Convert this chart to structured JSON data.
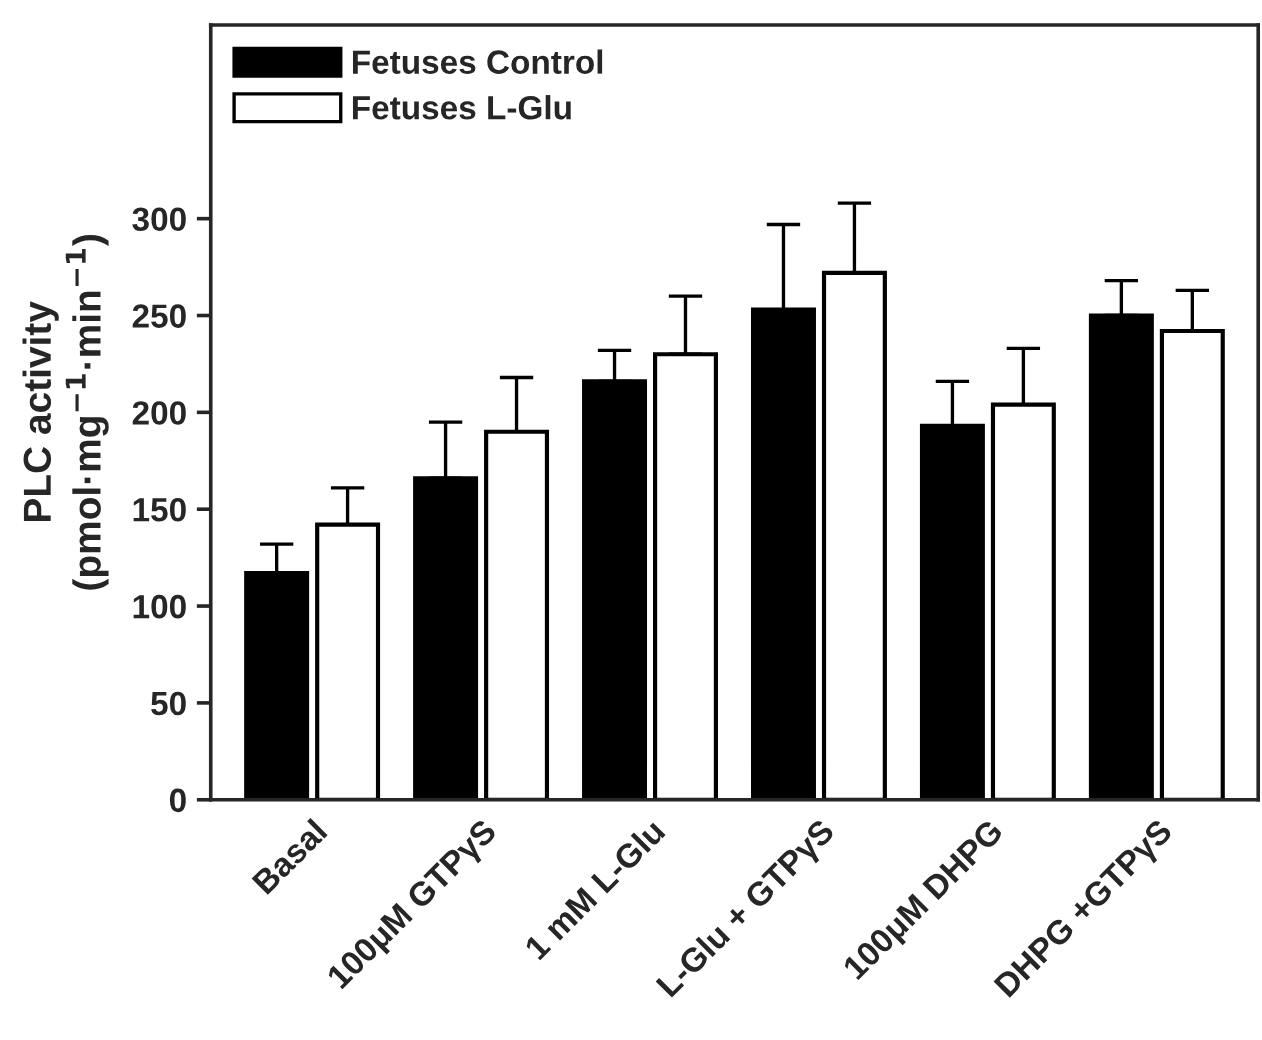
{
  "chart_data": {
    "type": "bar",
    "categories": [
      "Basal",
      "100μM GTPγS",
      "1 mM L-Glu",
      "L-Glu + GTPγS",
      "100μM DHPG",
      "DHPG +GTPγS"
    ],
    "series": [
      {
        "name": "Fetuses Control",
        "color": "#000000",
        "values": [
          117,
          166,
          216,
          253,
          193,
          250
        ],
        "errors": [
          [
            117,
            132
          ],
          [
            166,
            195
          ],
          [
            216,
            232
          ],
          [
            253,
            297
          ],
          [
            193,
            216
          ],
          [
            250,
            268
          ]
        ]
      },
      {
        "name": "Fetuses L-Glu",
        "color": "#ffffff",
        "values": [
          142,
          190,
          230,
          272,
          204,
          242
        ],
        "errors": [
          [
            142,
            161
          ],
          [
            190,
            218
          ],
          [
            230,
            260
          ],
          [
            272,
            308
          ],
          [
            204,
            233
          ],
          [
            242,
            263
          ]
        ]
      }
    ],
    "ylabel": "PLC activity\n(pmol·mg$^{−1}$·min$^{−1}$)",
    "ylim": [
      0,
      400
    ],
    "yticks": [
      0,
      50,
      100,
      150,
      200,
      250,
      300
    ],
    "legend": "top left",
    "grid": false
  }
}
